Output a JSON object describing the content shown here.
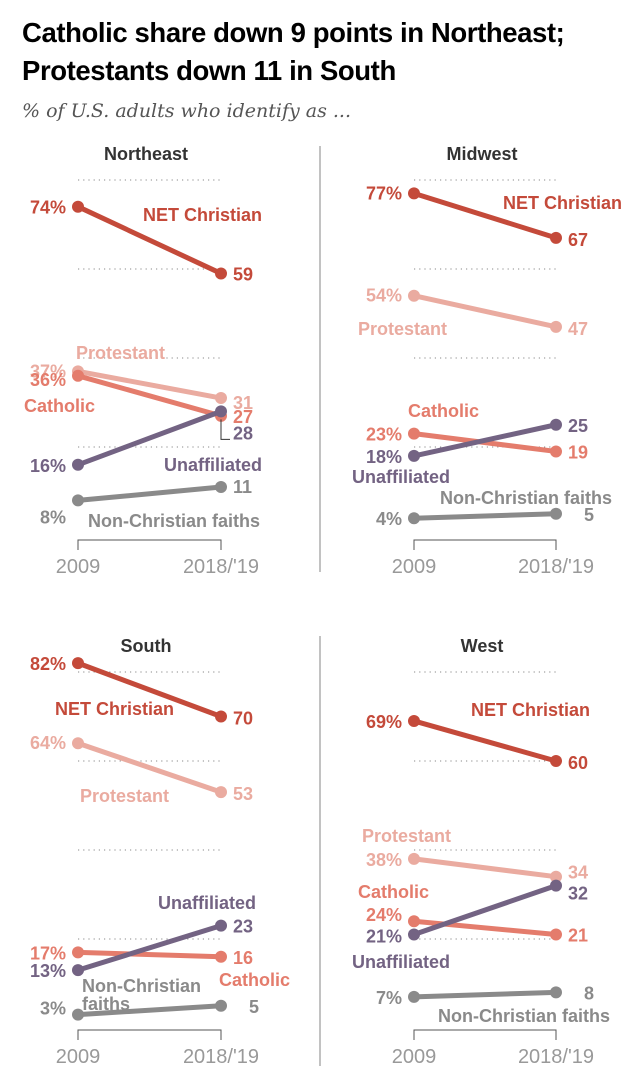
{
  "header": {
    "title": "Catholic share down 9 points in Northeast; Protestants down 11 in South",
    "subtitle": "% of U.S. adults who identify as ..."
  },
  "colors": {
    "net_christian": "#c44a3a",
    "protestant": "#eaaba0",
    "catholic": "#e47c6c",
    "unaffiliated": "#736383",
    "non_christian": "#8a8a8a",
    "gridline": "#888888",
    "divider": "#999999",
    "axis": "#555555"
  },
  "chart_data": {
    "type": "line",
    "title": "Catholic share down 9 points in Northeast; Protestants down 11 in South",
    "subtitle": "% of U.S. adults who identify as ...",
    "x": [
      "2009",
      "2018/'19"
    ],
    "xlabel": "",
    "ylabel": "% of U.S. adults",
    "ylim": [
      0,
      80
    ],
    "gridlines": [
      20,
      40,
      60,
      80
    ],
    "grid": true,
    "legend": "inline labels",
    "panels": [
      {
        "name": "Northeast",
        "series": [
          {
            "key": "net_christian",
            "name": "NET Christian",
            "values": [
              74,
              59
            ],
            "labels": [
              "74%",
              "59"
            ]
          },
          {
            "key": "protestant",
            "name": "Protestant",
            "values": [
              37,
              31
            ],
            "labels": [
              "37%",
              "31"
            ]
          },
          {
            "key": "catholic",
            "name": "Catholic",
            "values": [
              36,
              27
            ],
            "labels": [
              "36%",
              "27"
            ]
          },
          {
            "key": "unaffiliated",
            "name": "Unaffiliated",
            "values": [
              16,
              28
            ],
            "labels": [
              "16%",
              "28"
            ]
          },
          {
            "key": "non_christian",
            "name": "Non-Christian faiths",
            "values": [
              8,
              11
            ],
            "labels": [
              "8%",
              "11"
            ]
          }
        ]
      },
      {
        "name": "Midwest",
        "series": [
          {
            "key": "net_christian",
            "name": "NET Christian",
            "values": [
              77,
              67
            ],
            "labels": [
              "77%",
              "67"
            ]
          },
          {
            "key": "protestant",
            "name": "Protestant",
            "values": [
              54,
              47
            ],
            "labels": [
              "54%",
              "47"
            ]
          },
          {
            "key": "catholic",
            "name": "Catholic",
            "values": [
              23,
              19
            ],
            "labels": [
              "23%",
              "19"
            ]
          },
          {
            "key": "unaffiliated",
            "name": "Unaffiliated",
            "values": [
              18,
              25
            ],
            "labels": [
              "18%",
              "25"
            ]
          },
          {
            "key": "non_christian",
            "name": "Non-Christian faiths",
            "values": [
              4,
              5
            ],
            "labels": [
              "4%",
              "5"
            ]
          }
        ]
      },
      {
        "name": "South",
        "series": [
          {
            "key": "net_christian",
            "name": "NET Christian",
            "values": [
              82,
              70
            ],
            "labels": [
              "82%",
              "70"
            ]
          },
          {
            "key": "protestant",
            "name": "Protestant",
            "values": [
              64,
              53
            ],
            "labels": [
              "64%",
              "53"
            ]
          },
          {
            "key": "catholic",
            "name": "Catholic",
            "values": [
              17,
              16
            ],
            "labels": [
              "17%",
              "16"
            ]
          },
          {
            "key": "unaffiliated",
            "name": "Unaffiliated",
            "values": [
              13,
              23
            ],
            "labels": [
              "13%",
              "23"
            ]
          },
          {
            "key": "non_christian",
            "name": "Non-Christian faiths",
            "name_lines": [
              "Non-Christian",
              "faiths"
            ],
            "values": [
              3,
              5
            ],
            "labels": [
              "3%",
              "5"
            ]
          }
        ]
      },
      {
        "name": "West",
        "series": [
          {
            "key": "net_christian",
            "name": "NET Christian",
            "values": [
              69,
              60
            ],
            "labels": [
              "69%",
              "60"
            ]
          },
          {
            "key": "protestant",
            "name": "Protestant",
            "values": [
              38,
              34
            ],
            "labels": [
              "38%",
              "34"
            ]
          },
          {
            "key": "catholic",
            "name": "Catholic",
            "values": [
              24,
              21
            ],
            "labels": [
              "24%",
              "21"
            ]
          },
          {
            "key": "unaffiliated",
            "name": "Unaffiliated",
            "values": [
              21,
              32
            ],
            "labels": [
              "21%",
              "32"
            ]
          },
          {
            "key": "non_christian",
            "name": "Non-Christian faiths",
            "values": [
              7,
              8
            ],
            "labels": [
              "7%",
              "8"
            ]
          }
        ]
      }
    ]
  }
}
